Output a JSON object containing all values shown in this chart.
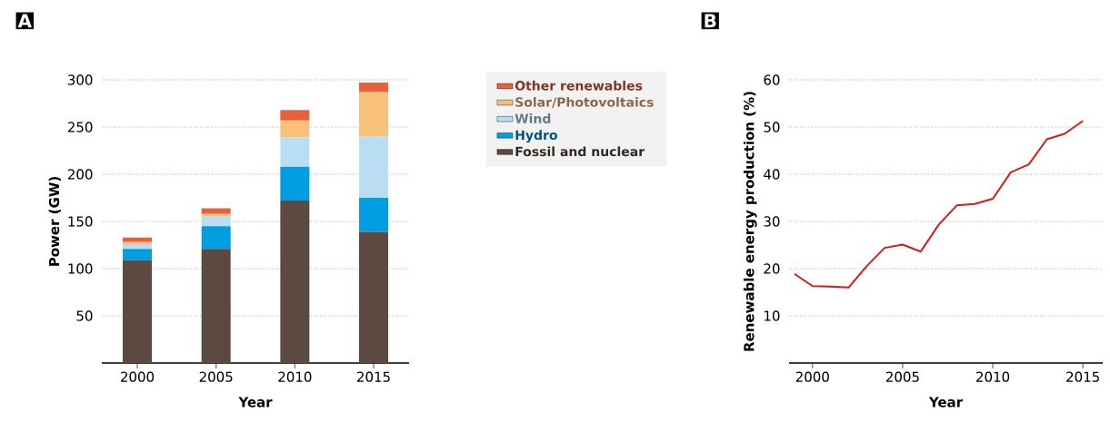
{
  "chart_data": [
    {
      "type": "bar",
      "title": "A",
      "xlabel": "Year",
      "ylabel": "Power (GW)",
      "stacked": true,
      "categories": [
        "2000",
        "2005",
        "2010",
        "2015"
      ],
      "series": [
        {
          "name": "Fossil and nuclear",
          "color": "#5c4a40",
          "values": [
            109,
            121,
            172,
            139
          ]
        },
        {
          "name": "Hydro",
          "color": "#009ee0",
          "values": [
            12,
            24,
            36,
            36
          ]
        },
        {
          "name": "Wind",
          "color": "#b9def4",
          "values": [
            5,
            10,
            31,
            65
          ]
        },
        {
          "name": "Solar/Photovoltaics",
          "color": "#f8c17a",
          "values": [
            2,
            3,
            18,
            47
          ]
        },
        {
          "name": "Other renewables",
          "color": "#e9603f",
          "values": [
            5,
            6,
            11,
            10
          ]
        }
      ],
      "ylim": [
        0,
        300
      ],
      "yticks": [
        50,
        100,
        150,
        200,
        250,
        300
      ],
      "grid": "y",
      "legend": "right"
    },
    {
      "type": "line",
      "title": "B",
      "xlabel": "Year",
      "ylabel": "Renewable energy production (%)",
      "x": [
        1999,
        2000,
        2001,
        2002,
        2003,
        2004,
        2005,
        2006,
        2007,
        2008,
        2009,
        2010,
        2011,
        2012,
        2013,
        2014,
        2015
      ],
      "series": [
        {
          "color": "#d7191c",
          "values": [
            18.9,
            16.3,
            16.2,
            16.0,
            20.5,
            24.4,
            25.1,
            23.6,
            29.3,
            33.4,
            33.7,
            34.8,
            40.4,
            42.1,
            47.4,
            48.6,
            51.3
          ]
        }
      ],
      "xlim": [
        1998.7,
        2016.1
      ],
      "xticks": [
        2000,
        2005,
        2010,
        2015
      ],
      "ylim": [
        0,
        60
      ],
      "yticks": [
        10,
        20,
        30,
        40,
        50,
        60
      ],
      "grid": "y",
      "marker": "none",
      "line_style": "solid"
    }
  ]
}
